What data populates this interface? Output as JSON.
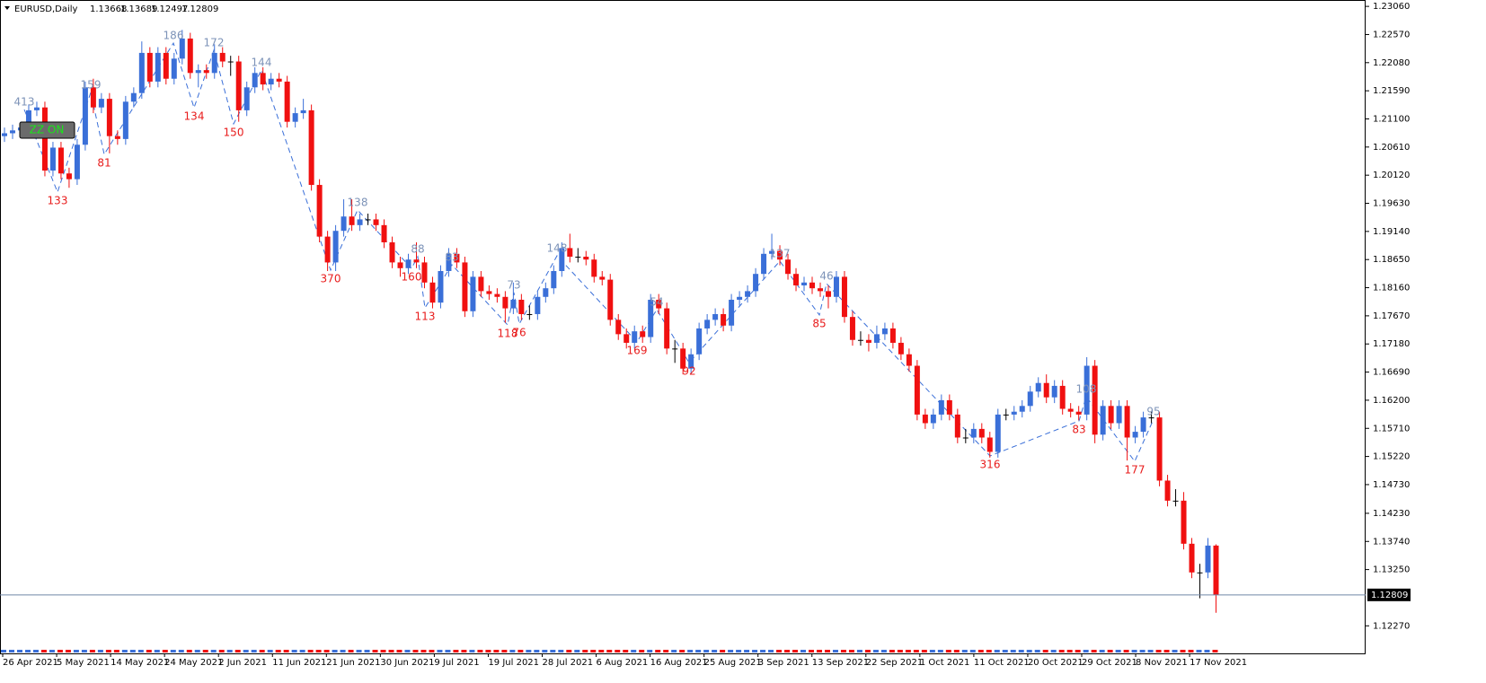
{
  "chart_data": {
    "type": "candlestick",
    "title": "EURUSD,Daily",
    "button": "ZZ ON",
    "up_color": "#3a6fd8",
    "down_color": "#f01010",
    "doji_color": "#000000",
    "price_line_color": "#6f86a8",
    "high_label_color": "#7d93b8",
    "low_label_color": "#e81c1c",
    "high_labels": [
      "413",
      "159",
      "186",
      "172",
      "144",
      "138",
      "88",
      "83",
      "73",
      "148",
      "54",
      "137",
      "46",
      "108",
      "95"
    ],
    "low_labels": [
      "133",
      "81",
      "134",
      "150",
      "370",
      "160",
      "113",
      "118",
      "76",
      "169",
      "92",
      "85",
      "316",
      "83",
      "177"
    ],
    "x_labels": [
      "26 Apr 2021",
      "5 May 2021",
      "14 May 2021",
      "24 May 2021",
      "2 Jun 2021",
      "11 Jun 2021",
      "21 Jun 2021",
      "30 Jun 2021",
      "9 Jul 2021",
      "19 Jul 2021",
      "28 Jul 2021",
      "6 Aug 2021",
      "16 Aug 2021",
      "25 Aug 2021",
      "3 Sep 2021",
      "13 Sep 2021",
      "22 Sep 2021",
      "1 Oct 2021",
      "11 Oct 2021",
      "20 Oct 2021",
      "29 Oct 2021",
      "8 Nov 2021",
      "17 Nov 2021"
    ],
    "ylim": [
      1.1179,
      1.2314
    ],
    "yticks": [
      {
        "value": 1.2306,
        "label": "1.23060"
      },
      {
        "value": 1.2257,
        "label": "1.22570"
      },
      {
        "value": 1.2208,
        "label": "1.22080"
      },
      {
        "value": 1.2159,
        "label": "1.21590"
      },
      {
        "value": 1.211,
        "label": "1.21100"
      },
      {
        "value": 1.2061,
        "label": "1.20610"
      },
      {
        "value": 1.2012,
        "label": "1.20120"
      },
      {
        "value": 1.1963,
        "label": "1.19630"
      },
      {
        "value": 1.1914,
        "label": "1.19140"
      },
      {
        "value": 1.1865,
        "label": "1.18650"
      },
      {
        "value": 1.1816,
        "label": "1.18160"
      },
      {
        "value": 1.1767,
        "label": "1.17670"
      },
      {
        "value": 1.1718,
        "label": "1.17180"
      },
      {
        "value": 1.1669,
        "label": "1.16690"
      },
      {
        "value": 1.162,
        "label": "1.16200"
      },
      {
        "value": 1.1571,
        "label": "1.15710"
      },
      {
        "value": 1.1522,
        "label": "1.15220"
      },
      {
        "value": 1.1473,
        "label": "1.14730"
      },
      {
        "value": 1.1423,
        "label": "1.14230"
      },
      {
        "value": 1.1374,
        "label": "1.13740"
      },
      {
        "value": 1.1325,
        "label": "1.13250"
      },
      {
        "value": 1.1227,
        "label": "1.12270"
      }
    ],
    "candles": [
      [
        1.208,
        1.2095,
        1.207,
        1.2085
      ],
      [
        1.2085,
        1.21,
        1.2075,
        1.209
      ],
      [
        1.209,
        1.2105,
        1.208,
        1.2095
      ],
      [
        1.2095,
        1.2135,
        1.2085,
        1.2125
      ],
      [
        1.2125,
        1.214,
        1.2115,
        1.213
      ],
      [
        1.213,
        1.214,
        1.201,
        1.202
      ],
      [
        1.202,
        1.207,
        1.201,
        1.206
      ],
      [
        1.206,
        1.207,
        1.2005,
        1.2015
      ],
      [
        1.2015,
        1.2025,
        1.199,
        1.2005
      ],
      [
        1.2005,
        1.2075,
        1.1995,
        1.2065
      ],
      [
        1.2065,
        1.2175,
        1.2055,
        1.2165
      ],
      [
        1.2165,
        1.218,
        1.212,
        1.213
      ],
      [
        1.213,
        1.2155,
        1.212,
        1.2145
      ],
      [
        1.2145,
        1.2155,
        1.205,
        1.208
      ],
      [
        1.208,
        1.209,
        1.2065,
        1.2075
      ],
      [
        1.2075,
        1.215,
        1.2065,
        1.214
      ],
      [
        1.214,
        1.2165,
        1.213,
        1.2155
      ],
      [
        1.2155,
        1.2245,
        1.2145,
        1.2225
      ],
      [
        1.2225,
        1.2235,
        1.2165,
        1.2175
      ],
      [
        1.2175,
        1.2235,
        1.2165,
        1.2225
      ],
      [
        1.2225,
        1.2235,
        1.217,
        1.218
      ],
      [
        1.218,
        1.2225,
        1.217,
        1.2215
      ],
      [
        1.2215,
        1.2265,
        1.2205,
        1.225
      ],
      [
        1.225,
        1.226,
        1.218,
        1.219
      ],
      [
        1.219,
        1.2205,
        1.2165,
        1.2195
      ],
      [
        1.2195,
        1.2205,
        1.218,
        1.219
      ],
      [
        1.219,
        1.224,
        1.218,
        1.2225
      ],
      [
        1.2225,
        1.2235,
        1.22,
        1.221
      ],
      [
        1.221,
        1.222,
        1.2185,
        1.221
      ],
      [
        1.221,
        1.222,
        1.2105,
        1.2125
      ],
      [
        1.2125,
        1.2175,
        1.2115,
        1.2165
      ],
      [
        1.2165,
        1.22,
        1.2155,
        1.219
      ],
      [
        1.219,
        1.22,
        1.216,
        1.217
      ],
      [
        1.217,
        1.219,
        1.216,
        1.218
      ],
      [
        1.218,
        1.219,
        1.2165,
        1.2175
      ],
      [
        1.2175,
        1.2185,
        1.2095,
        1.2105
      ],
      [
        1.2105,
        1.213,
        1.2095,
        1.212
      ],
      [
        1.212,
        1.2145,
        1.211,
        1.2125
      ],
      [
        1.2125,
        1.2135,
        1.1985,
        1.1995
      ],
      [
        1.1995,
        1.2005,
        1.1895,
        1.1905
      ],
      [
        1.1905,
        1.1915,
        1.1845,
        1.186
      ],
      [
        1.186,
        1.1925,
        1.1845,
        1.1915
      ],
      [
        1.1915,
        1.197,
        1.1905,
        1.194
      ],
      [
        1.194,
        1.197,
        1.1915,
        1.1925
      ],
      [
        1.1925,
        1.1945,
        1.1915,
        1.1935
      ],
      [
        1.1935,
        1.1945,
        1.1925,
        1.1935
      ],
      [
        1.1935,
        1.1945,
        1.1915,
        1.1925
      ],
      [
        1.1925,
        1.1935,
        1.1885,
        1.1895
      ],
      [
        1.1895,
        1.1905,
        1.185,
        1.186
      ],
      [
        1.186,
        1.187,
        1.1835,
        1.185
      ],
      [
        1.185,
        1.1875,
        1.184,
        1.1865
      ],
      [
        1.1865,
        1.1895,
        1.185,
        1.186
      ],
      [
        1.186,
        1.187,
        1.1815,
        1.1825
      ],
      [
        1.1825,
        1.1835,
        1.178,
        1.179
      ],
      [
        1.179,
        1.1855,
        1.178,
        1.1845
      ],
      [
        1.1845,
        1.1885,
        1.1835,
        1.1875
      ],
      [
        1.1875,
        1.1885,
        1.185,
        1.186
      ],
      [
        1.186,
        1.187,
        1.1765,
        1.1775
      ],
      [
        1.1775,
        1.1845,
        1.1765,
        1.1835
      ],
      [
        1.1835,
        1.1845,
        1.18,
        1.181
      ],
      [
        1.181,
        1.182,
        1.1795,
        1.1805
      ],
      [
        1.1805,
        1.1815,
        1.179,
        1.18
      ],
      [
        1.18,
        1.181,
        1.1755,
        1.178
      ],
      [
        1.178,
        1.1825,
        1.177,
        1.1795
      ],
      [
        1.1795,
        1.1805,
        1.176,
        1.177
      ],
      [
        1.177,
        1.1785,
        1.176,
        1.177
      ],
      [
        1.177,
        1.181,
        1.176,
        1.18
      ],
      [
        1.18,
        1.1825,
        1.179,
        1.1815
      ],
      [
        1.1815,
        1.1855,
        1.1805,
        1.1845
      ],
      [
        1.1845,
        1.1895,
        1.1835,
        1.1885
      ],
      [
        1.1885,
        1.191,
        1.186,
        1.187
      ],
      [
        1.187,
        1.1885,
        1.186,
        1.187
      ],
      [
        1.187,
        1.188,
        1.1855,
        1.1865
      ],
      [
        1.1865,
        1.1875,
        1.1825,
        1.1835
      ],
      [
        1.1835,
        1.1845,
        1.182,
        1.183
      ],
      [
        1.183,
        1.184,
        1.175,
        1.176
      ],
      [
        1.176,
        1.177,
        1.1725,
        1.1735
      ],
      [
        1.1735,
        1.1745,
        1.171,
        1.172
      ],
      [
        1.172,
        1.175,
        1.171,
        1.174
      ],
      [
        1.174,
        1.175,
        1.172,
        1.173
      ],
      [
        1.173,
        1.1805,
        1.172,
        1.1795
      ],
      [
        1.1795,
        1.1805,
        1.177,
        1.178
      ],
      [
        1.178,
        1.179,
        1.17,
        1.171
      ],
      [
        1.171,
        1.1725,
        1.1685,
        1.171
      ],
      [
        1.171,
        1.172,
        1.1665,
        1.1675
      ],
      [
        1.1675,
        1.171,
        1.1665,
        1.17
      ],
      [
        1.17,
        1.1755,
        1.169,
        1.1745
      ],
      [
        1.1745,
        1.177,
        1.1735,
        1.176
      ],
      [
        1.176,
        1.178,
        1.175,
        1.177
      ],
      [
        1.177,
        1.178,
        1.174,
        1.175
      ],
      [
        1.175,
        1.1805,
        1.174,
        1.1795
      ],
      [
        1.1795,
        1.181,
        1.1785,
        1.18
      ],
      [
        1.18,
        1.182,
        1.179,
        1.181
      ],
      [
        1.181,
        1.185,
        1.18,
        1.184
      ],
      [
        1.184,
        1.1885,
        1.183,
        1.1875
      ],
      [
        1.1875,
        1.191,
        1.1865,
        1.188
      ],
      [
        1.188,
        1.189,
        1.1855,
        1.1865
      ],
      [
        1.1865,
        1.1875,
        1.183,
        1.184
      ],
      [
        1.184,
        1.185,
        1.181,
        1.182
      ],
      [
        1.182,
        1.1835,
        1.181,
        1.1825
      ],
      [
        1.1825,
        1.1835,
        1.1805,
        1.1815
      ],
      [
        1.1815,
        1.1825,
        1.18,
        1.181
      ],
      [
        1.181,
        1.182,
        1.178,
        1.18
      ],
      [
        1.18,
        1.1845,
        1.179,
        1.1835
      ],
      [
        1.1835,
        1.1845,
        1.1755,
        1.1765
      ],
      [
        1.1765,
        1.1775,
        1.1715,
        1.1725
      ],
      [
        1.1725,
        1.174,
        1.1715,
        1.1725
      ],
      [
        1.1725,
        1.1735,
        1.1705,
        1.172
      ],
      [
        1.172,
        1.175,
        1.171,
        1.1735
      ],
      [
        1.1735,
        1.1755,
        1.1725,
        1.1745
      ],
      [
        1.1745,
        1.1755,
        1.171,
        1.172
      ],
      [
        1.172,
        1.173,
        1.169,
        1.17
      ],
      [
        1.17,
        1.171,
        1.167,
        1.168
      ],
      [
        1.168,
        1.169,
        1.1585,
        1.1595
      ],
      [
        1.1595,
        1.1605,
        1.157,
        1.158
      ],
      [
        1.158,
        1.1605,
        1.157,
        1.1595
      ],
      [
        1.1595,
        1.163,
        1.1585,
        1.162
      ],
      [
        1.162,
        1.163,
        1.1585,
        1.1595
      ],
      [
        1.1595,
        1.1605,
        1.1545,
        1.1555
      ],
      [
        1.1555,
        1.157,
        1.1545,
        1.1555
      ],
      [
        1.1555,
        1.158,
        1.1545,
        1.157
      ],
      [
        1.157,
        1.158,
        1.1545,
        1.1555
      ],
      [
        1.1555,
        1.1565,
        1.152,
        1.153
      ],
      [
        1.153,
        1.1605,
        1.152,
        1.1595
      ],
      [
        1.1595,
        1.1605,
        1.1585,
        1.1595
      ],
      [
        1.1595,
        1.161,
        1.1585,
        1.16
      ],
      [
        1.16,
        1.162,
        1.159,
        1.161
      ],
      [
        1.161,
        1.1645,
        1.16,
        1.1635
      ],
      [
        1.1635,
        1.166,
        1.1625,
        1.165
      ],
      [
        1.165,
        1.1665,
        1.1615,
        1.1625
      ],
      [
        1.1625,
        1.1655,
        1.1615,
        1.1645
      ],
      [
        1.1645,
        1.1655,
        1.1595,
        1.1605
      ],
      [
        1.1605,
        1.1615,
        1.159,
        1.16
      ],
      [
        1.16,
        1.161,
        1.1585,
        1.1595
      ],
      [
        1.1595,
        1.1695,
        1.1585,
        1.168
      ],
      [
        1.168,
        1.169,
        1.1545,
        1.156
      ],
      [
        1.156,
        1.162,
        1.155,
        1.161
      ],
      [
        1.161,
        1.162,
        1.157,
        1.158
      ],
      [
        1.158,
        1.162,
        1.157,
        1.161
      ],
      [
        1.161,
        1.162,
        1.1515,
        1.1555
      ],
      [
        1.1555,
        1.1575,
        1.1545,
        1.1565
      ],
      [
        1.1565,
        1.16,
        1.1555,
        1.159
      ],
      [
        1.159,
        1.16,
        1.158,
        1.159
      ],
      [
        1.159,
        1.16,
        1.147,
        1.148
      ],
      [
        1.148,
        1.149,
        1.1435,
        1.1445
      ],
      [
        1.1445,
        1.1465,
        1.1435,
        1.1445
      ],
      [
        1.1445,
        1.146,
        1.136,
        1.137
      ],
      [
        1.137,
        1.138,
        1.131,
        1.132
      ],
      [
        1.132,
        1.1335,
        1.1275,
        1.132
      ],
      [
        1.132,
        1.138,
        1.131,
        1.13668
      ],
      [
        1.13668,
        1.13689,
        1.12497,
        1.12809
      ]
    ]
  }
}
